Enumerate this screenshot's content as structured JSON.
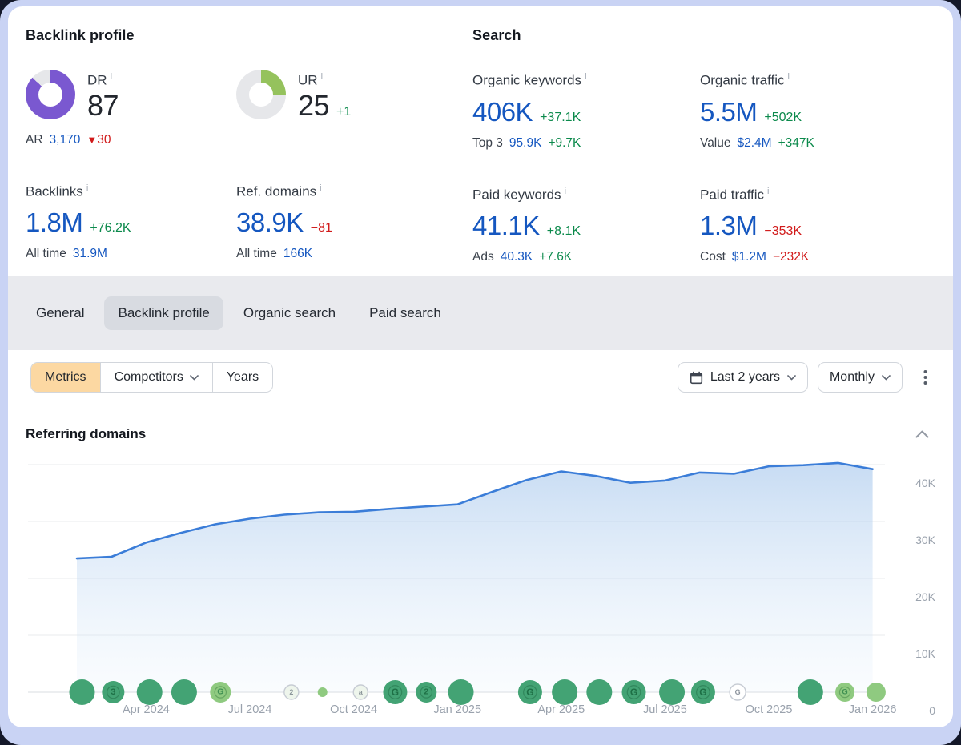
{
  "colors": {
    "accent_blue": "#1557c0",
    "positive_green": "#0c8a4c",
    "negative_red": "#d11a1a",
    "dr_purple": "#7a58d0",
    "ur_green": "#95c25d",
    "donut_track": "#e6e7ea",
    "metrics_active_bg": "#fcd8a2",
    "chart_line": "#3b7dd8",
    "event_green": "#43a374",
    "event_light_green": "#8fca80"
  },
  "icons": {
    "info": "i",
    "triangle_down": "▼"
  },
  "backlink_profile": {
    "title": "Backlink profile",
    "dr": {
      "label": "DR",
      "value": "87",
      "percent": 87
    },
    "ur": {
      "label": "UR",
      "value": "25",
      "delta": "+1",
      "percent": 25
    },
    "ar": {
      "label": "AR",
      "value": "3,170",
      "delta": "30"
    },
    "backlinks": {
      "label": "Backlinks",
      "value": "1.8M",
      "delta": "+76.2K",
      "sub_label": "All time",
      "sub_value": "31.9M"
    },
    "ref_domains": {
      "label": "Ref. domains",
      "value": "38.9K",
      "delta": "−81",
      "sub_label": "All time",
      "sub_value": "166K"
    }
  },
  "search": {
    "title": "Search",
    "organic_keywords": {
      "label": "Organic keywords",
      "value": "406K",
      "delta": "+37.1K",
      "sub_label": "Top 3",
      "sub_value": "95.9K",
      "sub_delta": "+9.7K"
    },
    "organic_traffic": {
      "label": "Organic traffic",
      "value": "5.5M",
      "delta": "+502K",
      "sub_label": "Value",
      "sub_value": "$2.4M",
      "sub_delta": "+347K"
    },
    "paid_keywords": {
      "label": "Paid keywords",
      "value": "41.1K",
      "delta": "+8.1K",
      "sub_label": "Ads",
      "sub_value": "40.3K",
      "sub_delta": "+7.6K"
    },
    "paid_traffic": {
      "label": "Paid traffic",
      "value": "1.3M",
      "delta": "−353K",
      "sub_label": "Cost",
      "sub_value": "$1.2M",
      "sub_delta": "−232K"
    }
  },
  "tabs": {
    "items": [
      {
        "label": "General",
        "active": false
      },
      {
        "label": "Backlink profile",
        "active": true
      },
      {
        "label": "Organic search",
        "active": false
      },
      {
        "label": "Paid search",
        "active": false
      }
    ]
  },
  "toolbar": {
    "metrics_label": "Metrics",
    "competitors_label": "Competitors",
    "years_label": "Years",
    "date_range": "Last 2 years",
    "granularity": "Monthly"
  },
  "chart_panel": {
    "title": "Referring domains"
  },
  "chart_data": {
    "type": "area",
    "title": "Referring domains",
    "xlabel": "",
    "ylabel": "Referring domains",
    "categories": [
      "Feb 2024",
      "Mar 2024",
      "Apr 2024",
      "May 2024",
      "Jun 2024",
      "Jul 2024",
      "Aug 2024",
      "Sep 2024",
      "Oct 2024",
      "Nov 2024",
      "Dec 2024",
      "Jan 2025",
      "Feb 2025",
      "Mar 2025",
      "Apr 2025",
      "May 2025",
      "Jun 2025",
      "Jul 2025",
      "Aug 2025",
      "Sep 2025",
      "Oct 2025",
      "Nov 2025",
      "Dec 2025",
      "Jan 2026"
    ],
    "values": [
      23500,
      23800,
      26300,
      28000,
      29500,
      30500,
      31200,
      31600,
      31700,
      32200,
      32600,
      33000,
      35200,
      37300,
      38800,
      38000,
      36800,
      37200,
      38600,
      38400,
      39700,
      39900,
      40300,
      39200
    ],
    "x_ticks": [
      "Apr 2024",
      "Jul 2024",
      "Oct 2024",
      "Jan 2025",
      "Apr 2025",
      "Jul 2025",
      "Oct 2025",
      "Jan 2026"
    ],
    "y_ticks": [
      {
        "label": "40K",
        "value": 40000
      },
      {
        "label": "30K",
        "value": 30000
      },
      {
        "label": "20K",
        "value": 20000
      },
      {
        "label": "10K",
        "value": 10000
      },
      {
        "label": "0",
        "value": 0
      }
    ],
    "ylim": [
      0,
      43000
    ],
    "grid": true,
    "legend": false,
    "events": [
      {
        "month_index": 0.15,
        "r": 16,
        "style": "solid",
        "label": ""
      },
      {
        "month_index": 1.05,
        "r": 14,
        "style": "solid",
        "label": "3"
      },
      {
        "month_index": 2.1,
        "r": 16,
        "style": "solid",
        "label": ""
      },
      {
        "month_index": 3.1,
        "r": 16,
        "style": "solid",
        "label": ""
      },
      {
        "month_index": 4.15,
        "r": 13,
        "style": "light",
        "label": "G"
      },
      {
        "month_index": 6.2,
        "r": 9,
        "style": "pale",
        "label": "2"
      },
      {
        "month_index": 7.1,
        "r": 6,
        "style": "light",
        "label": ""
      },
      {
        "month_index": 8.2,
        "r": 9,
        "style": "pale",
        "label": "a"
      },
      {
        "month_index": 9.2,
        "r": 15,
        "style": "solid",
        "label": "G"
      },
      {
        "month_index": 10.1,
        "r": 13,
        "style": "solid",
        "label": "2"
      },
      {
        "month_index": 11.1,
        "r": 16,
        "style": "solid",
        "label": ""
      },
      {
        "month_index": 13.1,
        "r": 15,
        "style": "solid",
        "label": "G"
      },
      {
        "month_index": 14.1,
        "r": 16,
        "style": "solid",
        "label": ""
      },
      {
        "month_index": 15.1,
        "r": 16,
        "style": "solid",
        "label": ""
      },
      {
        "month_index": 16.1,
        "r": 15,
        "style": "solid",
        "label": "G"
      },
      {
        "month_index": 17.2,
        "r": 16,
        "style": "solid",
        "label": ""
      },
      {
        "month_index": 18.1,
        "r": 15,
        "style": "solid",
        "label": "G"
      },
      {
        "month_index": 19.1,
        "r": 10,
        "style": "outline",
        "label": "G"
      },
      {
        "month_index": 21.2,
        "r": 16,
        "style": "solid",
        "label": ""
      },
      {
        "month_index": 22.2,
        "r": 12,
        "style": "light",
        "label": "G"
      },
      {
        "month_index": 23.1,
        "r": 12,
        "style": "light",
        "label": ""
      }
    ]
  }
}
